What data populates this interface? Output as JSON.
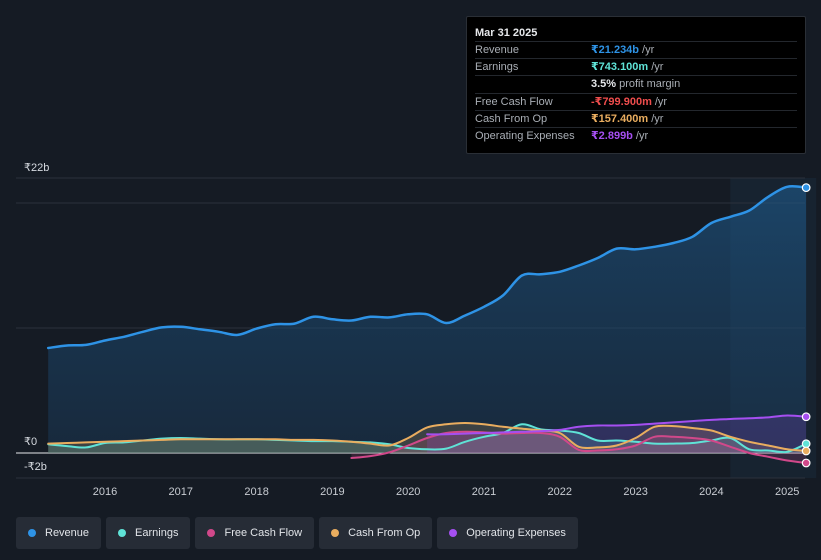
{
  "chart_data": {
    "type": "area",
    "y_axis": {
      "top_label": "₹22b",
      "zero_label": "₹0",
      "bottom_label": "-₹2b",
      "ylim": [
        -2,
        22
      ]
    },
    "x_ticks": [
      "2016",
      "2017",
      "2018",
      "2019",
      "2020",
      "2021",
      "2022",
      "2023",
      "2024",
      "2025"
    ],
    "x_range": [
      2015.2,
      2025.25
    ],
    "forecast_start": 2024.25,
    "series": [
      {
        "name": "Revenue",
        "color": "#2e93e6",
        "points": [
          [
            2015.25,
            8.4
          ],
          [
            2015.5,
            8.6
          ],
          [
            2015.75,
            8.65
          ],
          [
            2016.0,
            9.0
          ],
          [
            2016.25,
            9.3
          ],
          [
            2016.5,
            9.7
          ],
          [
            2016.75,
            10.05
          ],
          [
            2017.0,
            10.1
          ],
          [
            2017.25,
            9.9
          ],
          [
            2017.5,
            9.7
          ],
          [
            2017.75,
            9.45
          ],
          [
            2018.0,
            9.95
          ],
          [
            2018.25,
            10.3
          ],
          [
            2018.5,
            10.35
          ],
          [
            2018.75,
            10.9
          ],
          [
            2019.0,
            10.7
          ],
          [
            2019.25,
            10.6
          ],
          [
            2019.5,
            10.9
          ],
          [
            2019.75,
            10.85
          ],
          [
            2020.0,
            11.1
          ],
          [
            2020.25,
            11.1
          ],
          [
            2020.5,
            10.4
          ],
          [
            2020.75,
            11.0
          ],
          [
            2021.0,
            11.7
          ],
          [
            2021.25,
            12.6
          ],
          [
            2021.5,
            14.2
          ],
          [
            2021.75,
            14.3
          ],
          [
            2022.0,
            14.5
          ],
          [
            2022.25,
            15.0
          ],
          [
            2022.5,
            15.6
          ],
          [
            2022.75,
            16.35
          ],
          [
            2023.0,
            16.3
          ],
          [
            2023.25,
            16.5
          ],
          [
            2023.5,
            16.8
          ],
          [
            2023.75,
            17.3
          ],
          [
            2024.0,
            18.4
          ],
          [
            2024.25,
            18.9
          ],
          [
            2024.5,
            19.4
          ],
          [
            2024.75,
            20.5
          ],
          [
            2025.0,
            21.3
          ],
          [
            2025.25,
            21.23
          ]
        ]
      },
      {
        "name": "Earnings",
        "color": "#5fe3d7",
        "points": [
          [
            2015.25,
            0.7
          ],
          [
            2015.5,
            0.55
          ],
          [
            2015.75,
            0.45
          ],
          [
            2016.0,
            0.8
          ],
          [
            2016.25,
            0.85
          ],
          [
            2016.5,
            1.0
          ],
          [
            2016.75,
            1.15
          ],
          [
            2017.0,
            1.2
          ],
          [
            2017.25,
            1.15
          ],
          [
            2017.5,
            1.1
          ],
          [
            2017.75,
            1.1
          ],
          [
            2018.0,
            1.1
          ],
          [
            2018.25,
            1.05
          ],
          [
            2018.5,
            1.0
          ],
          [
            2018.75,
            0.95
          ],
          [
            2019.0,
            0.95
          ],
          [
            2019.25,
            0.9
          ],
          [
            2019.5,
            0.85
          ],
          [
            2019.75,
            0.7
          ],
          [
            2020.0,
            0.4
          ],
          [
            2020.25,
            0.3
          ],
          [
            2020.5,
            0.35
          ],
          [
            2020.75,
            0.9
          ],
          [
            2021.0,
            1.3
          ],
          [
            2021.25,
            1.6
          ],
          [
            2021.5,
            2.3
          ],
          [
            2021.75,
            1.9
          ],
          [
            2022.0,
            1.8
          ],
          [
            2022.25,
            1.6
          ],
          [
            2022.5,
            1.0
          ],
          [
            2022.75,
            1.0
          ],
          [
            2023.0,
            0.9
          ],
          [
            2023.25,
            0.75
          ],
          [
            2023.5,
            0.75
          ],
          [
            2023.75,
            0.8
          ],
          [
            2024.0,
            1.0
          ],
          [
            2024.25,
            1.2
          ],
          [
            2024.5,
            0.3
          ],
          [
            2024.75,
            0.2
          ],
          [
            2025.0,
            0.1
          ],
          [
            2025.25,
            0.74
          ]
        ]
      },
      {
        "name": "Free Cash Flow",
        "color": "#d1488a",
        "points": [
          [
            2019.25,
            -0.4
          ],
          [
            2019.5,
            -0.25
          ],
          [
            2019.75,
            0.05
          ],
          [
            2020.0,
            0.6
          ],
          [
            2020.25,
            1.2
          ],
          [
            2020.5,
            1.6
          ],
          [
            2020.75,
            1.7
          ],
          [
            2021.0,
            1.65
          ],
          [
            2021.25,
            1.55
          ],
          [
            2021.5,
            1.6
          ],
          [
            2021.75,
            1.6
          ],
          [
            2022.0,
            1.3
          ],
          [
            2022.25,
            0.25
          ],
          [
            2022.5,
            0.2
          ],
          [
            2022.75,
            0.3
          ],
          [
            2023.0,
            0.6
          ],
          [
            2023.25,
            1.3
          ],
          [
            2023.5,
            1.3
          ],
          [
            2023.75,
            1.2
          ],
          [
            2024.0,
            1.0
          ],
          [
            2024.25,
            0.5
          ],
          [
            2024.5,
            0.0
          ],
          [
            2024.75,
            -0.3
          ],
          [
            2025.0,
            -0.6
          ],
          [
            2025.25,
            -0.8
          ]
        ]
      },
      {
        "name": "Cash From Op",
        "color": "#e9ad5f",
        "points": [
          [
            2015.25,
            0.75
          ],
          [
            2015.5,
            0.8
          ],
          [
            2015.75,
            0.85
          ],
          [
            2016.0,
            0.9
          ],
          [
            2016.25,
            0.95
          ],
          [
            2016.5,
            1.0
          ],
          [
            2016.75,
            1.05
          ],
          [
            2017.0,
            1.1
          ],
          [
            2017.25,
            1.1
          ],
          [
            2017.5,
            1.1
          ],
          [
            2017.75,
            1.1
          ],
          [
            2018.0,
            1.1
          ],
          [
            2018.25,
            1.1
          ],
          [
            2018.5,
            1.05
          ],
          [
            2018.75,
            1.05
          ],
          [
            2019.0,
            1.0
          ],
          [
            2019.25,
            0.9
          ],
          [
            2019.5,
            0.75
          ],
          [
            2019.75,
            0.6
          ],
          [
            2020.0,
            1.2
          ],
          [
            2020.25,
            2.05
          ],
          [
            2020.5,
            2.3
          ],
          [
            2020.75,
            2.4
          ],
          [
            2021.0,
            2.3
          ],
          [
            2021.25,
            2.1
          ],
          [
            2021.5,
            1.95
          ],
          [
            2021.75,
            1.8
          ],
          [
            2022.0,
            1.6
          ],
          [
            2022.25,
            0.5
          ],
          [
            2022.5,
            0.45
          ],
          [
            2022.75,
            0.6
          ],
          [
            2023.0,
            1.2
          ],
          [
            2023.25,
            2.1
          ],
          [
            2023.5,
            2.15
          ],
          [
            2023.75,
            2.0
          ],
          [
            2024.0,
            1.8
          ],
          [
            2024.25,
            1.3
          ],
          [
            2024.5,
            0.9
          ],
          [
            2024.75,
            0.6
          ],
          [
            2025.0,
            0.3
          ],
          [
            2025.25,
            0.16
          ]
        ]
      },
      {
        "name": "Operating Expenses",
        "color": "#a54ff1",
        "points": [
          [
            2020.25,
            1.5
          ],
          [
            2020.5,
            1.5
          ],
          [
            2020.75,
            1.55
          ],
          [
            2021.0,
            1.6
          ],
          [
            2021.25,
            1.65
          ],
          [
            2021.5,
            1.7
          ],
          [
            2021.75,
            1.75
          ],
          [
            2022.0,
            1.85
          ],
          [
            2022.25,
            2.1
          ],
          [
            2022.5,
            2.2
          ],
          [
            2022.75,
            2.2
          ],
          [
            2023.0,
            2.25
          ],
          [
            2023.25,
            2.35
          ],
          [
            2023.5,
            2.45
          ],
          [
            2023.75,
            2.55
          ],
          [
            2024.0,
            2.65
          ],
          [
            2024.25,
            2.72
          ],
          [
            2024.5,
            2.78
          ],
          [
            2024.75,
            2.85
          ],
          [
            2025.0,
            3.0
          ],
          [
            2025.25,
            2.9
          ]
        ]
      }
    ]
  },
  "tooltip": {
    "date": "Mar 31 2025",
    "rows": [
      {
        "label": "Revenue",
        "value": "₹21.234b",
        "unit": "/yr",
        "color": "#2e93e6"
      },
      {
        "label": "Earnings",
        "value": "₹743.100m",
        "unit": "/yr",
        "color": "#5fe3d7"
      },
      {
        "label": "",
        "value": "3.5%",
        "unit": "profit margin",
        "color": "#e6e8eb"
      },
      {
        "label": "Free Cash Flow",
        "value": "-₹799.900m",
        "unit": "/yr",
        "color": "#ef4d4d"
      },
      {
        "label": "Cash From Op",
        "value": "₹157.400m",
        "unit": "/yr",
        "color": "#e9ad5f"
      },
      {
        "label": "Operating Expenses",
        "value": "₹2.899b",
        "unit": "/yr",
        "color": "#a54ff1"
      }
    ]
  },
  "legend": [
    {
      "label": "Revenue",
      "color": "#2e93e6"
    },
    {
      "label": "Earnings",
      "color": "#5fe3d7"
    },
    {
      "label": "Free Cash Flow",
      "color": "#d1488a"
    },
    {
      "label": "Cash From Op",
      "color": "#e9ad5f"
    },
    {
      "label": "Operating Expenses",
      "color": "#a54ff1"
    }
  ]
}
